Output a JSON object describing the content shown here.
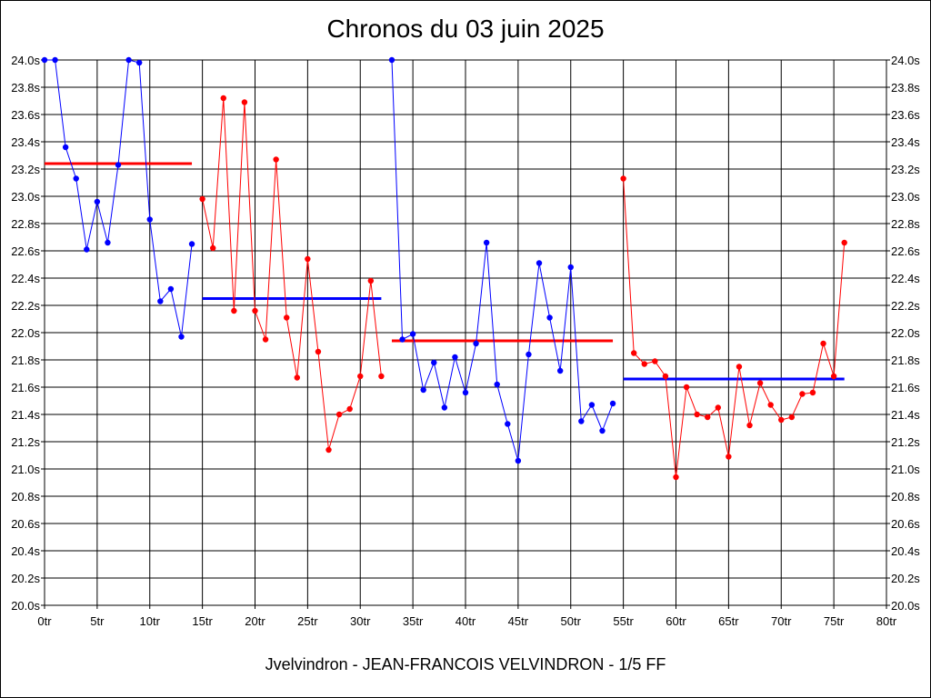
{
  "chart_data": {
    "type": "line",
    "title": "Chronos du 03 juin 2025",
    "caption": "Jvelvindron - JEAN-FRANCOIS VELVINDRON - 1/5 FF",
    "xlim": [
      0,
      80
    ],
    "ylim": [
      20.0,
      24.0
    ],
    "x_ticks": [
      0,
      5,
      10,
      15,
      20,
      25,
      30,
      35,
      40,
      45,
      50,
      55,
      60,
      65,
      70,
      75,
      80
    ],
    "x_tick_labels": [
      "0tr",
      "5tr",
      "10tr",
      "15tr",
      "20tr",
      "25tr",
      "30tr",
      "35tr",
      "40tr",
      "45tr",
      "50tr",
      "55tr",
      "60tr",
      "65tr",
      "70tr",
      "75tr",
      "80tr"
    ],
    "y_ticks": [
      20.0,
      20.2,
      20.4,
      20.6,
      20.8,
      21.0,
      21.2,
      21.4,
      21.6,
      21.8,
      22.0,
      22.2,
      22.4,
      22.6,
      22.8,
      23.0,
      23.2,
      23.4,
      23.6,
      23.8,
      24.0
    ],
    "y_tick_labels": [
      "20.0s",
      "20.2s",
      "20.4s",
      "20.6s",
      "20.8s",
      "21.0s",
      "21.2s",
      "21.4s",
      "21.6s",
      "21.8s",
      "22.0s",
      "22.2s",
      "22.4s",
      "22.6s",
      "22.8s",
      "23.0s",
      "23.2s",
      "23.4s",
      "23.6s",
      "23.8s",
      "24.0s"
    ],
    "y_ticks_both_sides": true,
    "grid": true,
    "colors": {
      "blue": "#0000ff",
      "red": "#ff0000"
    },
    "series": [
      {
        "color": "#0000ff",
        "x": [
          0,
          1,
          2,
          3,
          4,
          5,
          6,
          7,
          8,
          9,
          10,
          11,
          12,
          13,
          14
        ],
        "y": [
          24.0,
          24.0,
          23.36,
          23.13,
          22.61,
          22.96,
          22.66,
          23.23,
          24.0,
          23.98,
          22.83,
          22.23,
          22.32,
          21.97,
          22.65
        ]
      },
      {
        "color": "#ff0000",
        "x": [
          15,
          16,
          17,
          18,
          19,
          20,
          21,
          22,
          23,
          24,
          25,
          26,
          27,
          28,
          29,
          30,
          31,
          32
        ],
        "y": [
          22.98,
          22.62,
          23.72,
          22.16,
          23.69,
          22.16,
          21.95,
          23.27,
          22.11,
          21.67,
          22.54,
          21.86,
          21.14,
          21.4,
          21.44,
          21.68,
          22.38,
          21.68
        ]
      },
      {
        "color": "#0000ff",
        "x": [
          33,
          34,
          35,
          36,
          37,
          38,
          39,
          40,
          41,
          42,
          43,
          44,
          45,
          46,
          47,
          48,
          49,
          50,
          51,
          52,
          53,
          54
        ],
        "y": [
          24.0,
          21.95,
          21.99,
          21.58,
          21.78,
          21.45,
          21.82,
          21.56,
          21.92,
          22.66,
          21.62,
          21.33,
          21.06,
          21.84,
          22.51,
          22.11,
          21.72,
          22.48,
          21.35,
          21.47,
          21.28,
          21.48
        ]
      },
      {
        "color": "#ff0000",
        "x": [
          55,
          56,
          57,
          58,
          59,
          60,
          61,
          62,
          63,
          64,
          65,
          66,
          67,
          68,
          69,
          70,
          71,
          72,
          73,
          74,
          75,
          76
        ],
        "y": [
          23.13,
          21.85,
          21.77,
          21.79,
          21.68,
          20.94,
          21.6,
          21.4,
          21.38,
          21.45,
          21.09,
          21.75,
          21.32,
          21.63,
          21.47,
          21.36,
          21.38,
          21.55,
          21.56,
          21.92,
          21.68,
          22.66
        ]
      }
    ],
    "averages": [
      {
        "color": "#ff0000",
        "x_start": 0,
        "x_end": 14,
        "y": 23.24
      },
      {
        "color": "#0000ff",
        "x_start": 15,
        "x_end": 32,
        "y": 22.25
      },
      {
        "color": "#ff0000",
        "x_start": 33,
        "x_end": 54,
        "y": 21.94
      },
      {
        "color": "#0000ff",
        "x_start": 55,
        "x_end": 76,
        "y": 21.66
      }
    ]
  }
}
